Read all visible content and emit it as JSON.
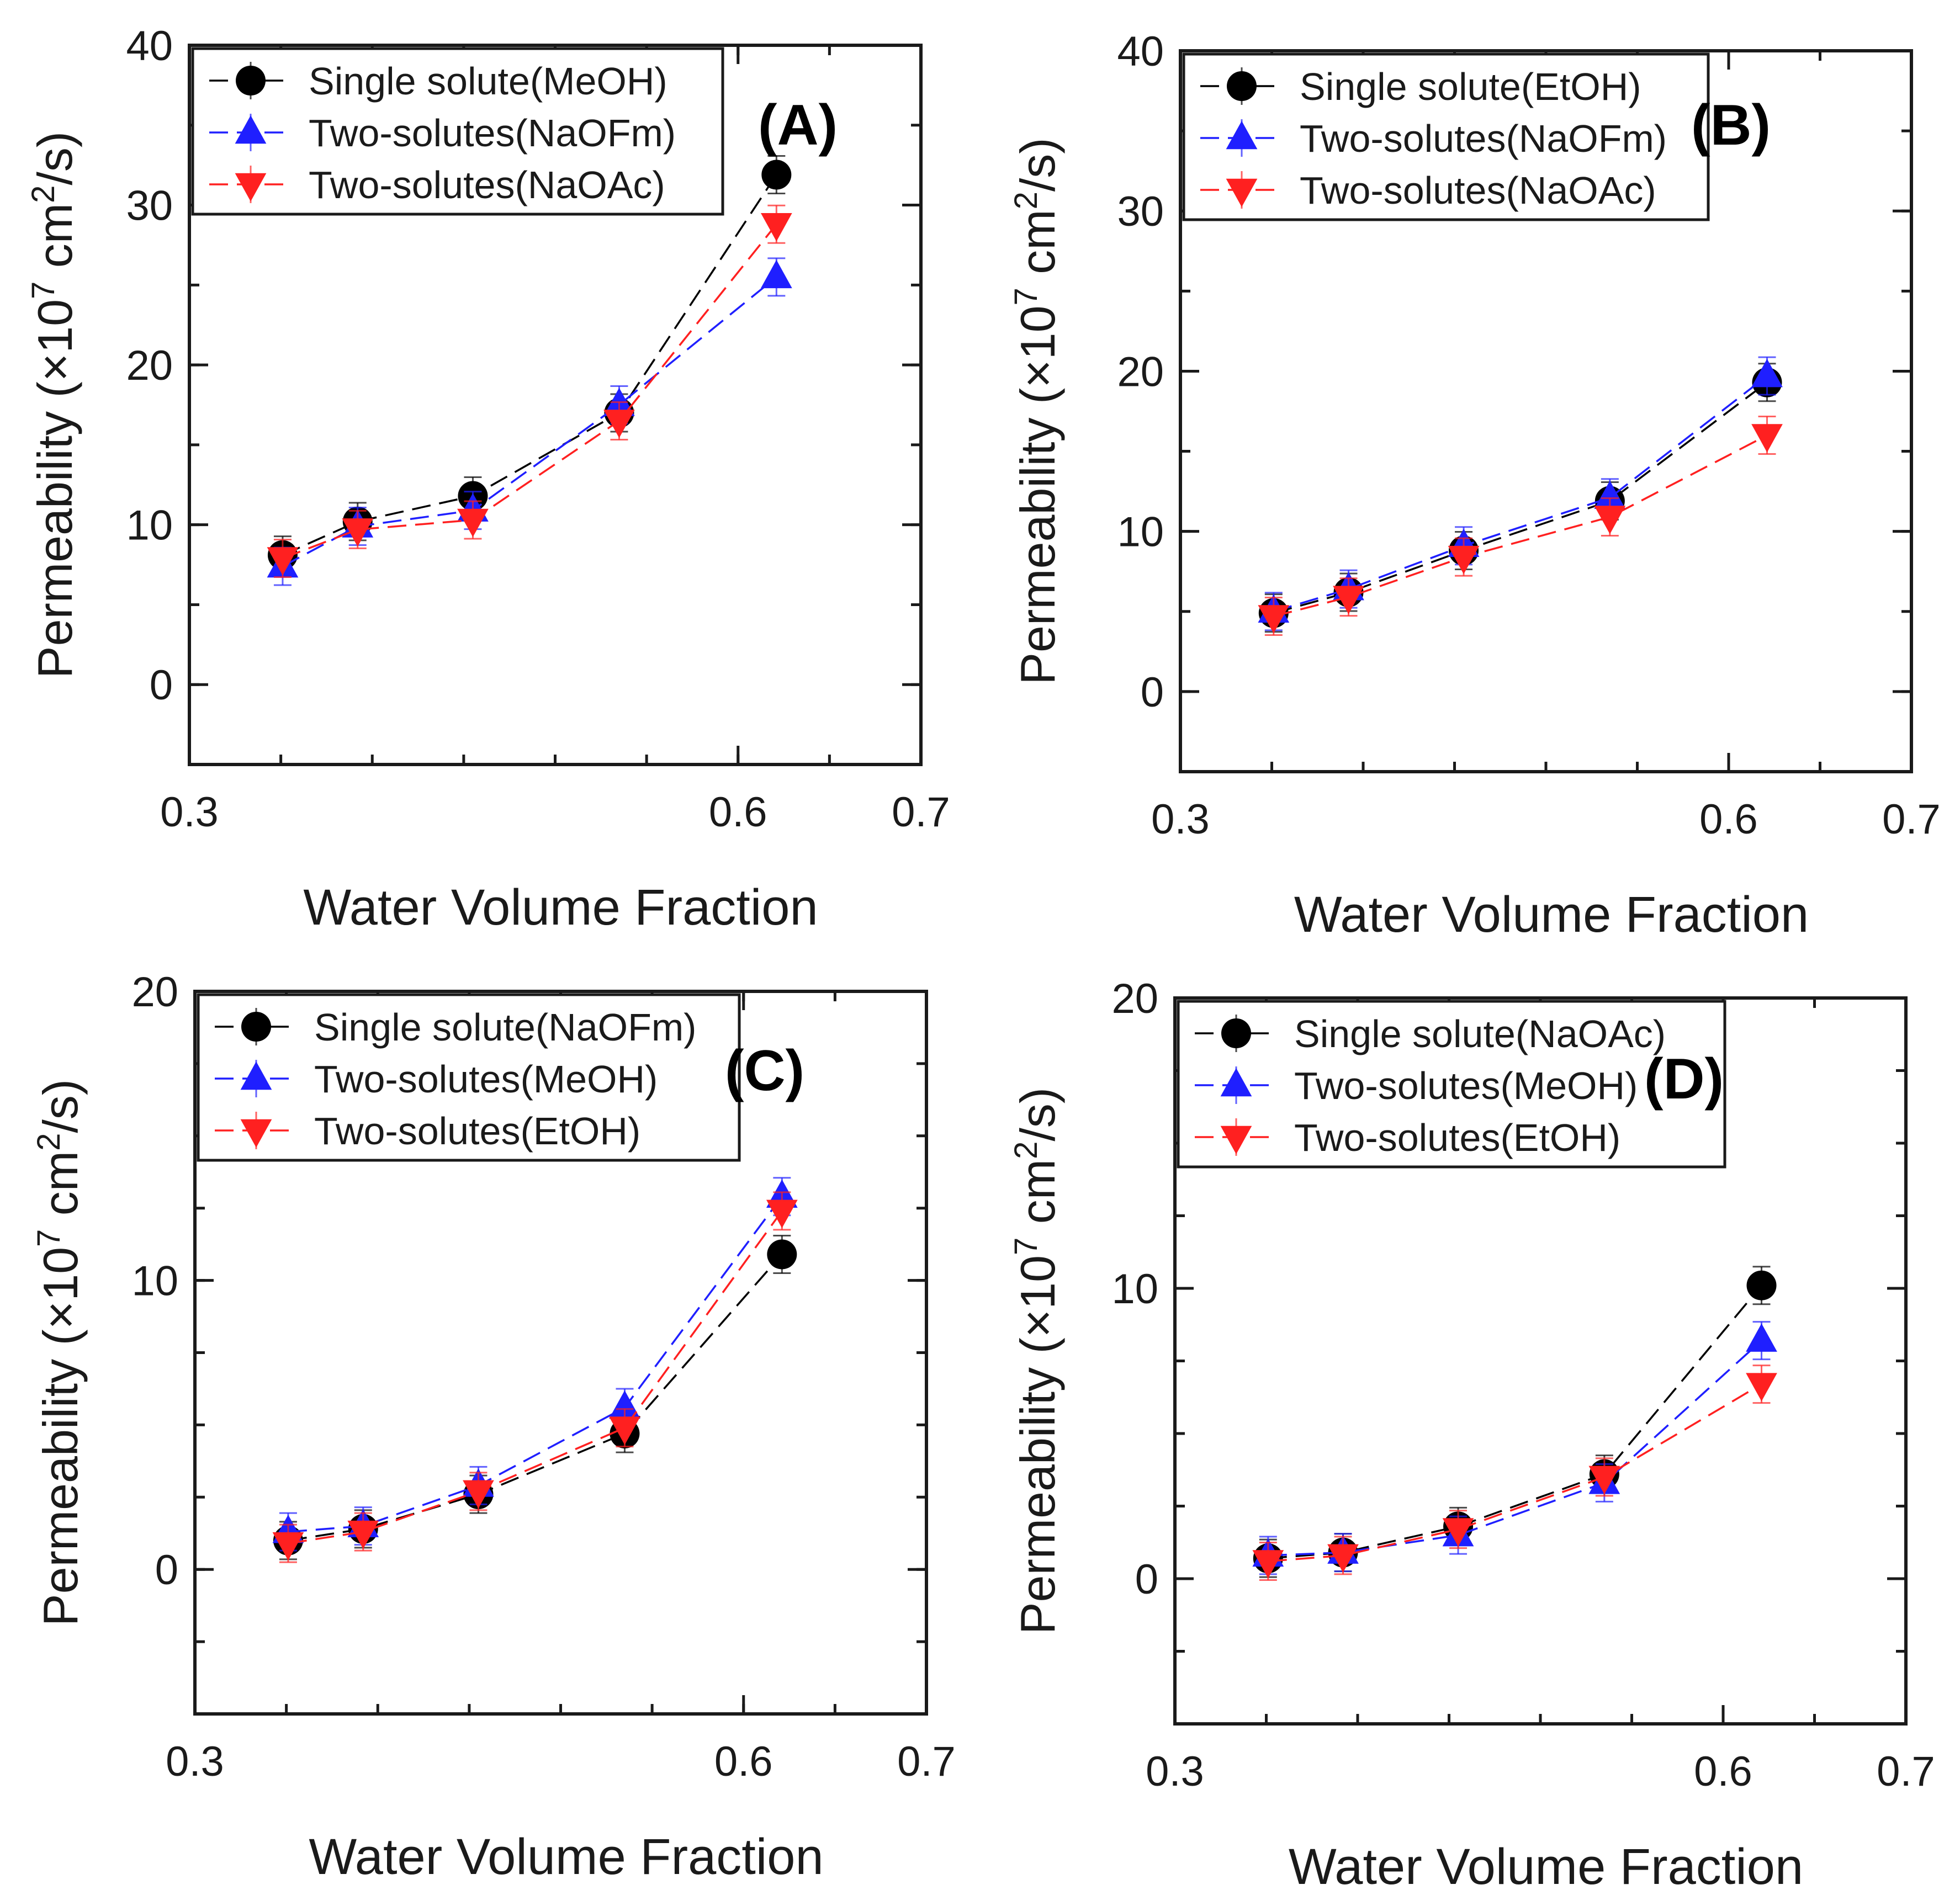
{
  "chart_data": [
    {
      "type": "line",
      "panel": "(A)",
      "xlabel": "Water Volume Fraction",
      "ylabel_parts": [
        "Permeability (×10",
        "7",
        " cm",
        "2",
        "/s)"
      ],
      "xlim": [
        0.3,
        0.7
      ],
      "ylim": [
        -5,
        40
      ],
      "xticks": [
        0.3,
        0.6,
        0.7
      ],
      "xtick_labels": [
        "0.3",
        "0.6",
        "0.7"
      ],
      "yticks": [
        0,
        10,
        20,
        30,
        40
      ],
      "ytick_labels": [
        "0",
        "10",
        "20",
        "30",
        "40"
      ],
      "legend_position": "top-left",
      "series": [
        {
          "name": "Single solute(MeOH)",
          "color": "#000000",
          "marker": "circle",
          "x": [
            0.351,
            0.392,
            0.455,
            0.535,
            0.621
          ],
          "y": [
            8.1,
            10.2,
            11.8,
            17.0,
            31.9
          ]
        },
        {
          "name": "Two-solutes(NaOFm)",
          "color": "#1f1fff",
          "marker": "triangle-up",
          "x": [
            0.351,
            0.392,
            0.455,
            0.535,
            0.621
          ],
          "y": [
            7.4,
            9.9,
            10.9,
            17.5,
            25.5
          ]
        },
        {
          "name": "Two-solutes(NaOAc)",
          "color": "#ff2020",
          "marker": "triangle-down",
          "x": [
            0.351,
            0.392,
            0.455,
            0.535,
            0.621
          ],
          "y": [
            7.9,
            9.7,
            10.3,
            16.5,
            28.8
          ]
        }
      ]
    },
    {
      "type": "line",
      "panel": "(B)",
      "xlabel": "Water Volume Fraction",
      "ylabel_parts": [
        "Permeability (×10",
        "7",
        " cm",
        "2",
        "/s)"
      ],
      "xlim": [
        0.3,
        0.7
      ],
      "ylim": [
        -5,
        40
      ],
      "xticks": [
        0.3,
        0.6,
        0.7
      ],
      "xtick_labels": [
        "0.3",
        "0.6",
        "0.7"
      ],
      "yticks": [
        0,
        10,
        20,
        30,
        40
      ],
      "ytick_labels": [
        "0",
        "10",
        "20",
        "30",
        "40"
      ],
      "legend_position": "top-left",
      "series": [
        {
          "name": "Single solute(EtOH)",
          "color": "#000000",
          "marker": "circle",
          "x": [
            0.351,
            0.392,
            0.455,
            0.535,
            0.621
          ],
          "y": [
            4.9,
            6.2,
            8.8,
            11.9,
            19.3
          ]
        },
        {
          "name": "Two-solutes(NaOFm)",
          "color": "#1f1fff",
          "marker": "triangle-up",
          "x": [
            0.351,
            0.392,
            0.455,
            0.535,
            0.621
          ],
          "y": [
            5.0,
            6.4,
            9.1,
            12.1,
            19.7
          ]
        },
        {
          "name": "Two-solutes(NaOAc)",
          "color": "#ff2020",
          "marker": "triangle-down",
          "x": [
            0.351,
            0.392,
            0.455,
            0.535,
            0.621
          ],
          "y": [
            4.7,
            5.9,
            8.4,
            10.9,
            16.0
          ]
        }
      ]
    },
    {
      "type": "line",
      "panel": "(C)",
      "xlabel": "Water Volume Fraction",
      "ylabel_parts": [
        "Permeability (×10",
        "7",
        " cm",
        "2",
        "/s)"
      ],
      "xlim": [
        0.3,
        0.7
      ],
      "ylim": [
        -5,
        20
      ],
      "xticks": [
        0.3,
        0.6,
        0.7
      ],
      "xtick_labels": [
        "0.3",
        "0.6",
        "0.7"
      ],
      "yticks": [
        0,
        10,
        20
      ],
      "ytick_labels": [
        "0",
        "10",
        "20"
      ],
      "legend_position": "top-left",
      "series": [
        {
          "name": "Single solute(NaOFm)",
          "color": "#000000",
          "marker": "circle",
          "x": [
            0.351,
            0.392,
            0.455,
            0.535,
            0.621
          ],
          "y": [
            1.0,
            1.4,
            2.6,
            4.7,
            10.9
          ]
        },
        {
          "name": "Two-solutes(MeOH)",
          "color": "#1f1fff",
          "marker": "triangle-up",
          "x": [
            0.351,
            0.392,
            0.455,
            0.535,
            0.621
          ],
          "y": [
            1.3,
            1.5,
            2.9,
            5.6,
            12.9
          ]
        },
        {
          "name": "Two-solutes(EtOH)",
          "color": "#ff2020",
          "marker": "triangle-down",
          "x": [
            0.351,
            0.392,
            0.455,
            0.535,
            0.621
          ],
          "y": [
            0.9,
            1.3,
            2.7,
            4.9,
            12.4
          ]
        }
      ]
    },
    {
      "type": "line",
      "panel": "(D)",
      "xlabel": "Water Volume Fraction",
      "ylabel_parts": [
        "Permeability (×10",
        "7",
        " cm",
        "2",
        "/s)"
      ],
      "xlim": [
        0.3,
        0.7
      ],
      "ylim": [
        -5,
        20
      ],
      "xticks": [
        0.3,
        0.6,
        0.7
      ],
      "xtick_labels": [
        "0.3",
        "0.6",
        "0.7"
      ],
      "yticks": [
        0,
        10,
        20
      ],
      "ytick_labels": [
        "0",
        "10",
        "20"
      ],
      "legend_position": "top-left",
      "series": [
        {
          "name": "Single solute(NaOAc)",
          "color": "#000000",
          "marker": "circle",
          "x": [
            0.351,
            0.392,
            0.455,
            0.535,
            0.621
          ],
          "y": [
            0.7,
            0.9,
            1.8,
            3.6,
            10.1
          ]
        },
        {
          "name": "Two-solutes(MeOH)",
          "color": "#1f1fff",
          "marker": "triangle-up",
          "x": [
            0.351,
            0.392,
            0.455,
            0.535,
            0.621
          ],
          "y": [
            0.8,
            0.9,
            1.5,
            3.3,
            8.2
          ]
        },
        {
          "name": "Two-solutes(EtOH)",
          "color": "#ff2020",
          "marker": "triangle-down",
          "x": [
            0.351,
            0.392,
            0.455,
            0.535,
            0.621
          ],
          "y": [
            0.6,
            0.8,
            1.7,
            3.5,
            6.7
          ]
        }
      ]
    }
  ]
}
